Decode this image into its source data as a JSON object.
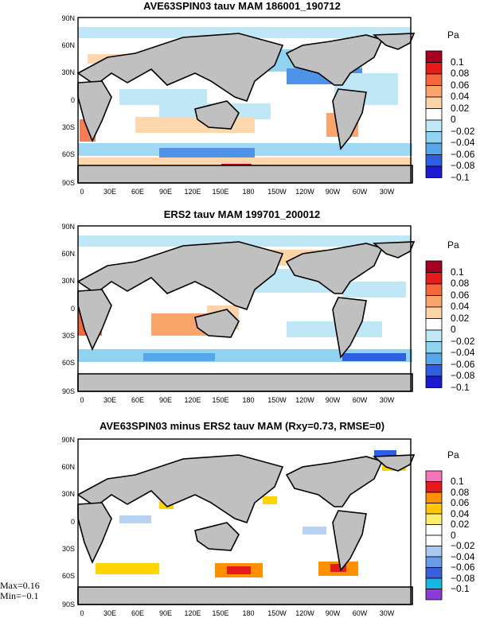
{
  "panels": [
    {
      "title": "AVE63SPIN03 tauv MAM 186001_190712",
      "unit": "Pa",
      "levels": [
        "0.1",
        "0.08",
        "0.06",
        "0.04",
        "0.02",
        "0",
        "−0.02",
        "−0.04",
        "−0.06",
        "−0.08",
        "−0.1"
      ]
    },
    {
      "title": "ERS2 tauv MAM 199701_200012",
      "unit": "Pa",
      "levels": [
        "0.1",
        "0.08",
        "0.06",
        "0.04",
        "0.02",
        "0",
        "−0.02",
        "−0.04",
        "−0.06",
        "−0.08",
        "−0.1"
      ]
    },
    {
      "title": "AVE63SPIN03 minus ERS2 tauv MAM (Rxy=0.73, RMSE=0)",
      "unit": "Pa",
      "levels": [
        "0.1",
        "0.08",
        "0.06",
        "0.04",
        "0.02",
        "0",
        "−0.02",
        "−0.04",
        "−0.06",
        "−0.08",
        "−0.1"
      ]
    }
  ],
  "axes": {
    "lat_ticks": [
      "90N",
      "60N",
      "30N",
      "0",
      "30S",
      "60S",
      "90S"
    ],
    "lon_ticks": [
      "0",
      "30E",
      "60E",
      "90E",
      "120E",
      "150E",
      "180",
      "150W",
      "120W",
      "90W",
      "60W",
      "30W"
    ]
  },
  "stats": {
    "max": "Max=0.16",
    "min": "Min=−0.1"
  }
}
